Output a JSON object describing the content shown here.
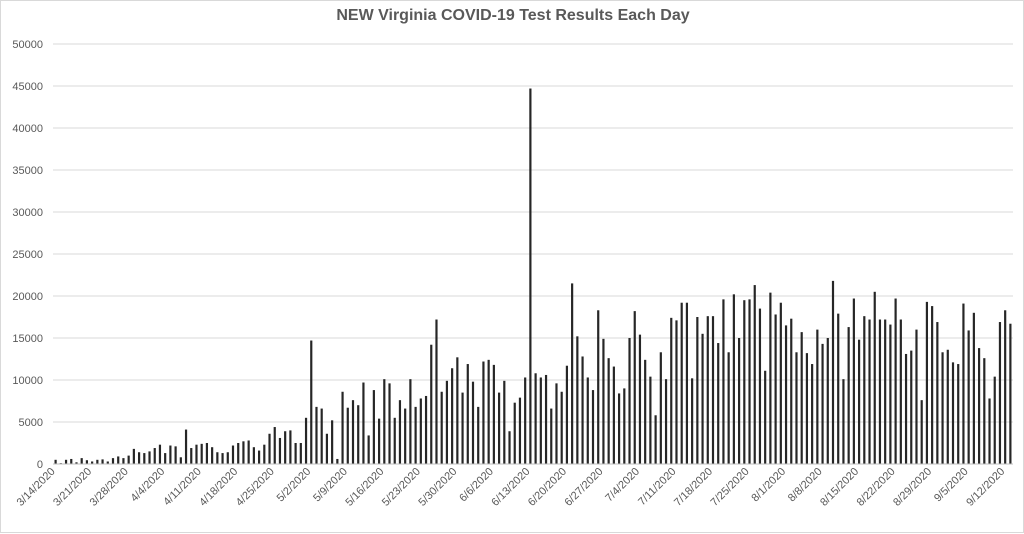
{
  "chart_data": {
    "type": "bar",
    "title": "NEW Virginia COVID-19 Test Results Each Day",
    "xlabel": "",
    "ylabel": "",
    "ylim": [
      0,
      50000
    ],
    "yticks": [
      0,
      5000,
      10000,
      15000,
      20000,
      25000,
      30000,
      35000,
      40000,
      45000,
      50000
    ],
    "bar_color": "#262626",
    "grid": true,
    "xtick_labels": [
      "3/14/2020",
      "3/21/2020",
      "3/28/2020",
      "4/4/2020",
      "4/11/2020",
      "4/18/2020",
      "4/25/2020",
      "5/2/2020",
      "5/9/2020",
      "5/16/2020",
      "5/23/2020",
      "5/30/2020",
      "6/6/2020",
      "6/13/2020",
      "6/20/2020",
      "6/27/2020",
      "7/4/2020",
      "7/11/2020",
      "7/18/2020",
      "7/25/2020",
      "8/1/2020",
      "8/8/2020",
      "8/15/2020",
      "8/22/2020",
      "8/29/2020",
      "9/5/2020",
      "9/12/2020"
    ],
    "categories": [
      "3/14/2020",
      "3/15/2020",
      "3/16/2020",
      "3/17/2020",
      "3/18/2020",
      "3/19/2020",
      "3/20/2020",
      "3/21/2020",
      "3/22/2020",
      "3/23/2020",
      "3/24/2020",
      "3/25/2020",
      "3/26/2020",
      "3/27/2020",
      "3/28/2020",
      "3/29/2020",
      "3/30/2020",
      "3/31/2020",
      "4/1/2020",
      "4/2/2020",
      "4/3/2020",
      "4/4/2020",
      "4/5/2020",
      "4/6/2020",
      "4/7/2020",
      "4/8/2020",
      "4/9/2020",
      "4/10/2020",
      "4/11/2020",
      "4/12/2020",
      "4/13/2020",
      "4/14/2020",
      "4/15/2020",
      "4/16/2020",
      "4/17/2020",
      "4/18/2020",
      "4/19/2020",
      "4/20/2020",
      "4/21/2020",
      "4/22/2020",
      "4/23/2020",
      "4/24/2020",
      "4/25/2020",
      "4/26/2020",
      "4/27/2020",
      "4/28/2020",
      "4/29/2020",
      "4/30/2020",
      "5/1/2020",
      "5/2/2020",
      "5/3/2020",
      "5/4/2020",
      "5/5/2020",
      "5/6/2020",
      "5/7/2020",
      "5/8/2020",
      "5/9/2020",
      "5/10/2020",
      "5/11/2020",
      "5/12/2020",
      "5/13/2020",
      "5/14/2020",
      "5/15/2020",
      "5/16/2020",
      "5/17/2020",
      "5/18/2020",
      "5/19/2020",
      "5/20/2020",
      "5/21/2020",
      "5/22/2020",
      "5/23/2020",
      "5/24/2020",
      "5/25/2020",
      "5/26/2020",
      "5/27/2020",
      "5/28/2020",
      "5/29/2020",
      "5/30/2020",
      "5/31/2020",
      "6/1/2020",
      "6/2/2020",
      "6/3/2020",
      "6/4/2020",
      "6/5/2020",
      "6/6/2020",
      "6/7/2020",
      "6/8/2020",
      "6/9/2020",
      "6/10/2020",
      "6/11/2020",
      "6/12/2020",
      "6/13/2020",
      "6/14/2020",
      "6/15/2020",
      "6/16/2020",
      "6/17/2020",
      "6/18/2020",
      "6/19/2020",
      "6/20/2020",
      "6/21/2020",
      "6/22/2020",
      "6/23/2020",
      "6/24/2020",
      "6/25/2020",
      "6/26/2020",
      "6/27/2020",
      "6/28/2020",
      "6/29/2020",
      "6/30/2020",
      "7/1/2020",
      "7/2/2020",
      "7/3/2020",
      "7/4/2020",
      "7/5/2020",
      "7/6/2020",
      "7/7/2020",
      "7/8/2020",
      "7/9/2020",
      "7/10/2020",
      "7/11/2020",
      "7/12/2020",
      "7/13/2020",
      "7/14/2020",
      "7/15/2020",
      "7/16/2020",
      "7/17/2020",
      "7/18/2020",
      "7/19/2020",
      "7/20/2020",
      "7/21/2020",
      "7/22/2020",
      "7/23/2020",
      "7/24/2020",
      "7/25/2020",
      "7/26/2020",
      "7/27/2020",
      "7/28/2020",
      "7/29/2020",
      "7/30/2020",
      "7/31/2020",
      "8/1/2020",
      "8/2/2020",
      "8/3/2020",
      "8/4/2020",
      "8/5/2020",
      "8/6/2020",
      "8/7/2020",
      "8/8/2020",
      "8/9/2020",
      "8/10/2020",
      "8/11/2020",
      "8/12/2020",
      "8/13/2020",
      "8/14/2020",
      "8/15/2020",
      "8/16/2020",
      "8/17/2020",
      "8/18/2020",
      "8/19/2020",
      "8/20/2020",
      "8/21/2020",
      "8/22/2020",
      "8/23/2020",
      "8/24/2020",
      "8/25/2020",
      "8/26/2020",
      "8/27/2020",
      "8/28/2020",
      "8/29/2020",
      "8/30/2020",
      "8/31/2020",
      "9/1/2020",
      "9/2/2020",
      "9/3/2020",
      "9/4/2020",
      "9/5/2020",
      "9/6/2020",
      "9/7/2020",
      "9/8/2020",
      "9/9/2020",
      "9/10/2020",
      "9/11/2020",
      "9/12/2020",
      "9/13/2020"
    ],
    "values": [
      500,
      100,
      500,
      600,
      200,
      700,
      450,
      300,
      500,
      550,
      300,
      700,
      900,
      700,
      1000,
      1800,
      1400,
      1300,
      1500,
      1900,
      2300,
      1300,
      2200,
      2100,
      800,
      4100,
      1900,
      2300,
      2400,
      2500,
      2000,
      1400,
      1300,
      1400,
      2200,
      2500,
      2700,
      2800,
      2000,
      1600,
      2300,
      3600,
      4400,
      3100,
      3900,
      4000,
      2500,
      2500,
      5500,
      14700,
      6800,
      6600,
      3600,
      5200,
      600,
      8600,
      6700,
      7600,
      7000,
      9700,
      3400,
      8800,
      5400,
      10100,
      9600,
      5500,
      7600,
      6600,
      10100,
      6800,
      7800,
      8100,
      14200,
      17200,
      8600,
      9900,
      11400,
      12700,
      8500,
      11900,
      9800,
      6800,
      12200,
      12400,
      11800,
      8500,
      9900,
      3900,
      7300,
      7900,
      10300,
      44700,
      10800,
      10300,
      10600,
      6600,
      9600,
      8600,
      11700,
      21500,
      15200,
      12800,
      10300,
      8800,
      18300,
      14900,
      12600,
      11600,
      8400,
      9000,
      15000,
      18200,
      15400,
      12400,
      10400,
      5800,
      13300,
      10100,
      17400,
      17100,
      19200,
      19200,
      10200,
      17500,
      15500,
      17600,
      17600,
      14400,
      19600,
      13300,
      20200,
      15000,
      19500,
      19600,
      21300,
      18500,
      11100,
      20400,
      17800,
      19200,
      16500,
      17300,
      13300,
      15700,
      13200,
      11900,
      16000,
      14300,
      15000,
      21800,
      17900,
      10100,
      16300,
      19700,
      14800,
      17600,
      17200,
      20500,
      17200,
      17200,
      16600,
      19700,
      17200,
      13100,
      13500,
      16000,
      7600,
      19300,
      18800,
      16900,
      13300,
      13600,
      12100,
      11900,
      19100,
      15900,
      18000,
      13800,
      12600,
      7800,
      10400,
      16900,
      18300,
      16700
    ]
  }
}
